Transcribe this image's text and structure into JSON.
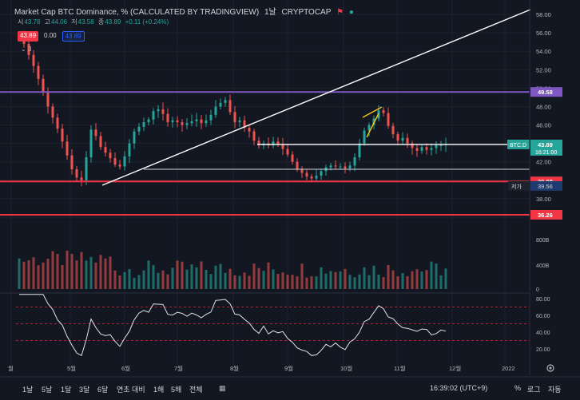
{
  "header": {
    "title": "Market Cap BTC Dominance, % (CALCULATED BY TRADINGVIEW)",
    "interval": "1날",
    "exchange": "CRYPTOCAP"
  },
  "ohlc": {
    "open_label": "시",
    "open": "43.78",
    "high_label": "고",
    "high": "44.06",
    "low_label": "저",
    "low": "43.58",
    "close_label": "종",
    "close": "43.89",
    "change": "+0.11 (+0.24%)"
  },
  "pills": [
    "43.89",
    "0.00",
    "43.89"
  ],
  "collapse_label": "3",
  "price_axis": {
    "ticks": [
      "58.00",
      "56.00",
      "54.00",
      "52.00",
      "50.00",
      "48.00",
      "46.00",
      "44.00",
      "42.00",
      "40.00",
      "38.00",
      "36.00"
    ],
    "tags": {
      "resistance": "49.58",
      "current_symbol": "BTC.D",
      "current": "43.89",
      "countdown": "16:21:00",
      "support1": "39.88",
      "low_label": "저가",
      "low_value": "39.56",
      "support2": "36.26"
    },
    "volume_ticks": [
      "800B",
      "400B",
      "0"
    ],
    "osc_ticks": [
      "80.00",
      "60.00",
      "40.00",
      "20.00"
    ]
  },
  "time_axis": [
    "월",
    "5월",
    "6월",
    "7월",
    "8월",
    "9월",
    "10월",
    "11월",
    "12월",
    "2022"
  ],
  "bottom_bar": {
    "timeframes": [
      "1날",
      "5날",
      "1달",
      "3달",
      "6달",
      "연초 대비",
      "1해",
      "5해",
      "전체"
    ],
    "clock": "16:39:02 (UTC+9)",
    "percent": "%",
    "log": "로그",
    "auto": "자동"
  },
  "colors": {
    "background": "#131722",
    "up": "#26a69a",
    "down": "#ef5350",
    "resistance": "#7e57c2",
    "support": "#f23645",
    "trendline": "#ffffff",
    "wedge": "#f5c518",
    "text": "#d1d4dc"
  },
  "chart_data": {
    "type": "candlestick",
    "symbol": "BTC.D",
    "ylim": [
      35.5,
      59
    ],
    "close_path": [
      [
        0,
        55.5
      ],
      [
        6,
        54.8
      ],
      [
        12,
        53.6
      ],
      [
        18,
        52.4
      ],
      [
        24,
        51.0
      ],
      [
        30,
        49.5
      ],
      [
        36,
        48.0
      ],
      [
        42,
        46.8
      ],
      [
        48,
        45.6
      ],
      [
        54,
        44.2
      ],
      [
        60,
        42.7
      ],
      [
        66,
        41.2
      ],
      [
        72,
        40.3
      ],
      [
        78,
        40.0
      ],
      [
        84,
        42.5
      ],
      [
        90,
        45.5
      ],
      [
        96,
        44.8
      ],
      [
        102,
        43.6
      ],
      [
        108,
        43.0
      ],
      [
        114,
        42.4
      ],
      [
        120,
        41.7
      ],
      [
        126,
        41.5
      ],
      [
        132,
        42.6
      ],
      [
        138,
        44.0
      ],
      [
        144,
        45.3
      ],
      [
        150,
        45.8
      ],
      [
        156,
        46.3
      ],
      [
        162,
        46.6
      ],
      [
        168,
        47.5
      ],
      [
        174,
        47.7
      ],
      [
        180,
        47.2
      ],
      [
        186,
        46.3
      ],
      [
        192,
        46.5
      ],
      [
        198,
        46.3
      ],
      [
        204,
        46.0
      ],
      [
        210,
        46.2
      ],
      [
        216,
        46.4
      ],
      [
        222,
        46.6
      ],
      [
        228,
        46.2
      ],
      [
        234,
        46.5
      ],
      [
        240,
        47.1
      ],
      [
        246,
        48.0
      ],
      [
        252,
        48.4
      ],
      [
        258,
        48.7
      ],
      [
        264,
        47.4
      ],
      [
        270,
        46.3
      ],
      [
        276,
        46.5
      ],
      [
        282,
        45.7
      ],
      [
        288,
        45.3
      ],
      [
        294,
        44.3
      ],
      [
        300,
        43.8
      ],
      [
        306,
        44.0
      ],
      [
        312,
        43.8
      ],
      [
        318,
        44.2
      ],
      [
        324,
        43.9
      ],
      [
        330,
        43.4
      ],
      [
        336,
        42.8
      ],
      [
        342,
        42.0
      ],
      [
        348,
        41.2
      ],
      [
        354,
        40.8
      ],
      [
        360,
        40.4
      ],
      [
        366,
        40.2
      ],
      [
        372,
        40.5
      ],
      [
        378,
        41.0
      ],
      [
        384,
        41.4
      ],
      [
        390,
        41.6
      ],
      [
        396,
        41.5
      ],
      [
        402,
        41.5
      ],
      [
        408,
        41.3
      ],
      [
        414,
        41.6
      ],
      [
        420,
        42.5
      ],
      [
        426,
        44.0
      ],
      [
        432,
        45.4
      ],
      [
        438,
        46.0
      ],
      [
        444,
        46.7
      ],
      [
        450,
        47.6
      ],
      [
        456,
        47.3
      ],
      [
        462,
        45.9
      ],
      [
        468,
        45.0
      ],
      [
        474,
        44.3
      ],
      [
        480,
        44.6
      ],
      [
        486,
        44.0
      ],
      [
        492,
        43.5
      ],
      [
        498,
        43.2
      ],
      [
        504,
        43.6
      ],
      [
        510,
        43.3
      ],
      [
        516,
        43.5
      ],
      [
        522,
        43.8
      ],
      [
        528,
        43.8
      ],
      [
        534,
        43.9
      ]
    ],
    "horizontal_levels": {
      "resistance": 49.58,
      "current": 43.89,
      "support1": 39.88,
      "support2": 36.26
    },
    "osc_ylim": [
      10,
      90
    ],
    "osc_bands": [
      70,
      50,
      30
    ]
  }
}
